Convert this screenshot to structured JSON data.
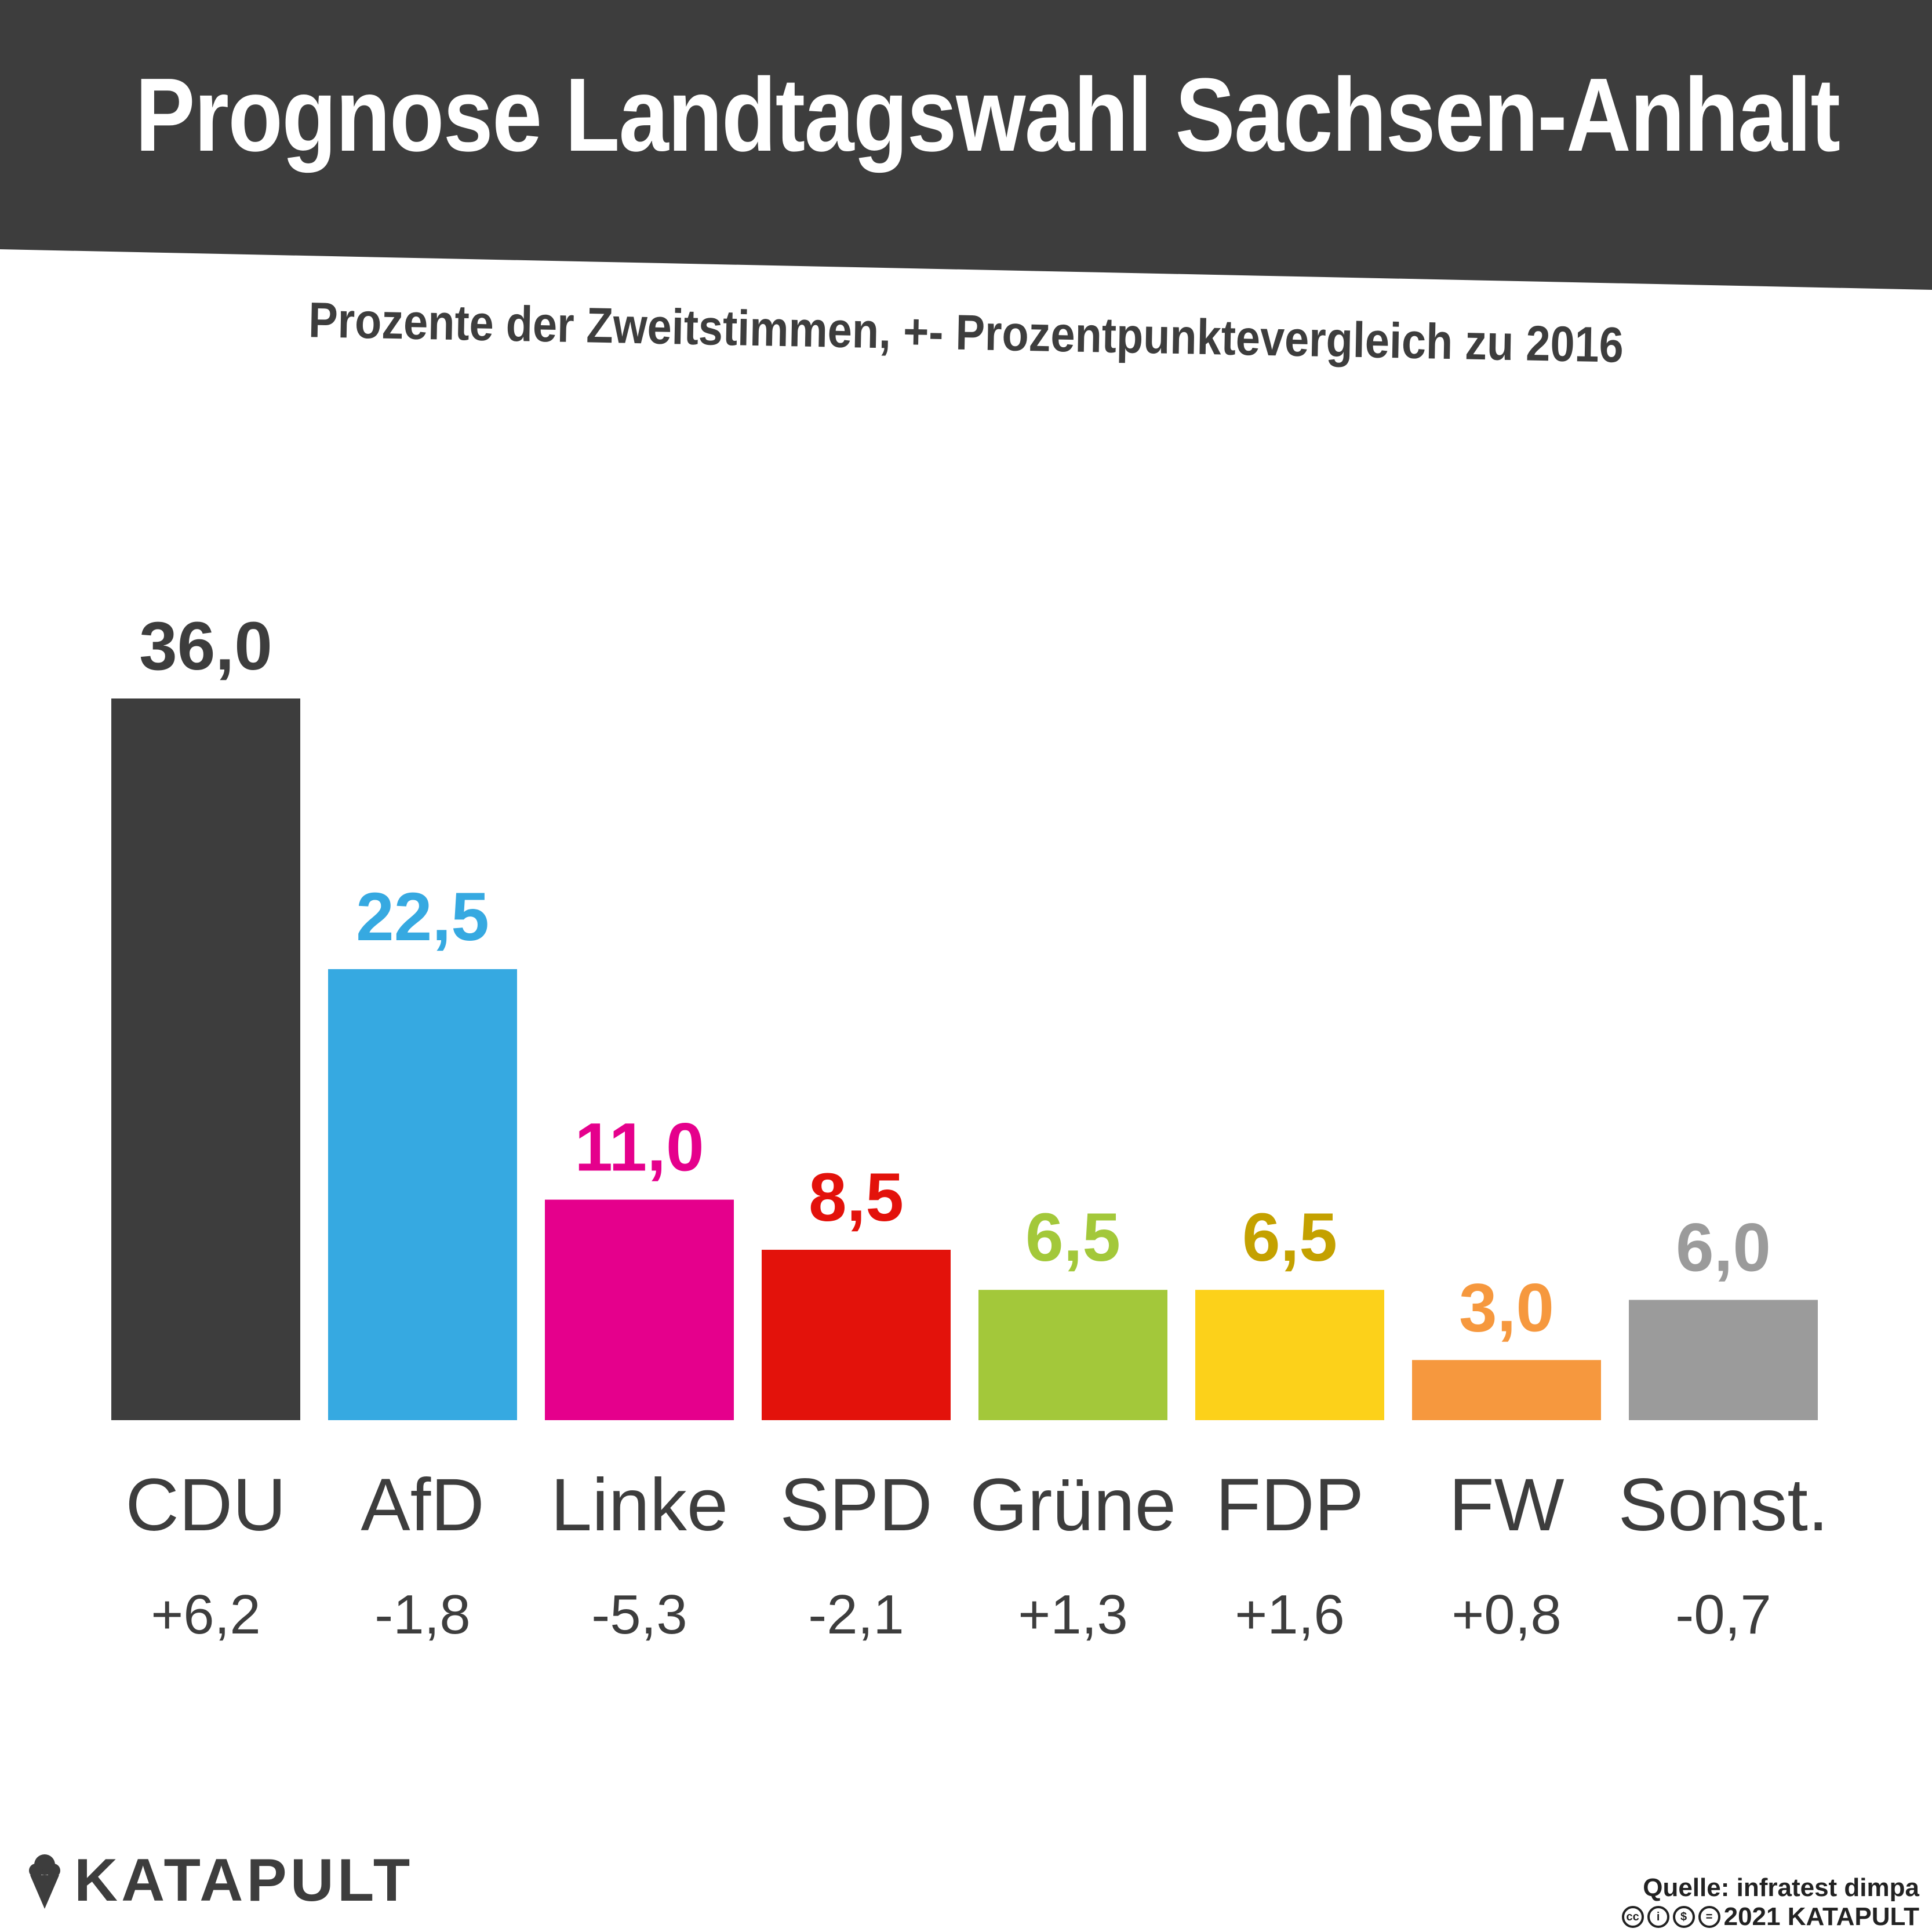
{
  "header": {
    "title": "Prognose Landtagswahl Sachsen-Anhalt",
    "subtitle": "Prozente der Zweitstimmen, +- Prozentpunktevergleich zu 2016"
  },
  "chart_data": {
    "type": "bar",
    "categories": [
      "CDU",
      "AfD",
      "Linke",
      "SPD",
      "Grüne",
      "FDP",
      "FW",
      "Sonst."
    ],
    "values": [
      36.0,
      22.5,
      11.0,
      8.5,
      6.5,
      6.5,
      3.0,
      6.0
    ],
    "value_labels": [
      "36,0",
      "22,5",
      "11,0",
      "8,5",
      "6,5",
      "6,5",
      "3,0",
      "6,0"
    ],
    "changes": [
      "+6,2",
      "-1,8",
      "-5,3",
      "-2,1",
      "+1,3",
      "+1,6",
      "+0,8",
      "-0,7"
    ],
    "colors": [
      "#3d3d3d",
      "#36a9e1",
      "#e5008c",
      "#e3120b",
      "#a3c83a",
      "#fcd11a",
      "#f6983e",
      "#9b9b9b"
    ],
    "label_colors": [
      "#3d3d3d",
      "#36a9e1",
      "#e5008c",
      "#e3120b",
      "#a3c83a",
      "#c4a100",
      "#f6983e",
      "#9b9b9b"
    ],
    "title": "Prognose Landtagswahl Sachsen-Anhalt",
    "subtitle": "Prozente der Zweitstimmen, +- Prozentpunktevergleich zu 2016",
    "ylim": [
      0,
      36
    ],
    "grid": false,
    "legend": "none"
  },
  "footer": {
    "logo": "KATAPULT",
    "logo_icon": "ice-cream-icon",
    "source": "Quelle: infratest dimpa",
    "copyright": "2021 KATAPULT",
    "license_icons": [
      "cc-icon",
      "by-icon",
      "nc-icon",
      "nd-icon"
    ]
  },
  "colors": {
    "banner": "#3d3d3d",
    "text_dark": "#3d3d3d"
  }
}
